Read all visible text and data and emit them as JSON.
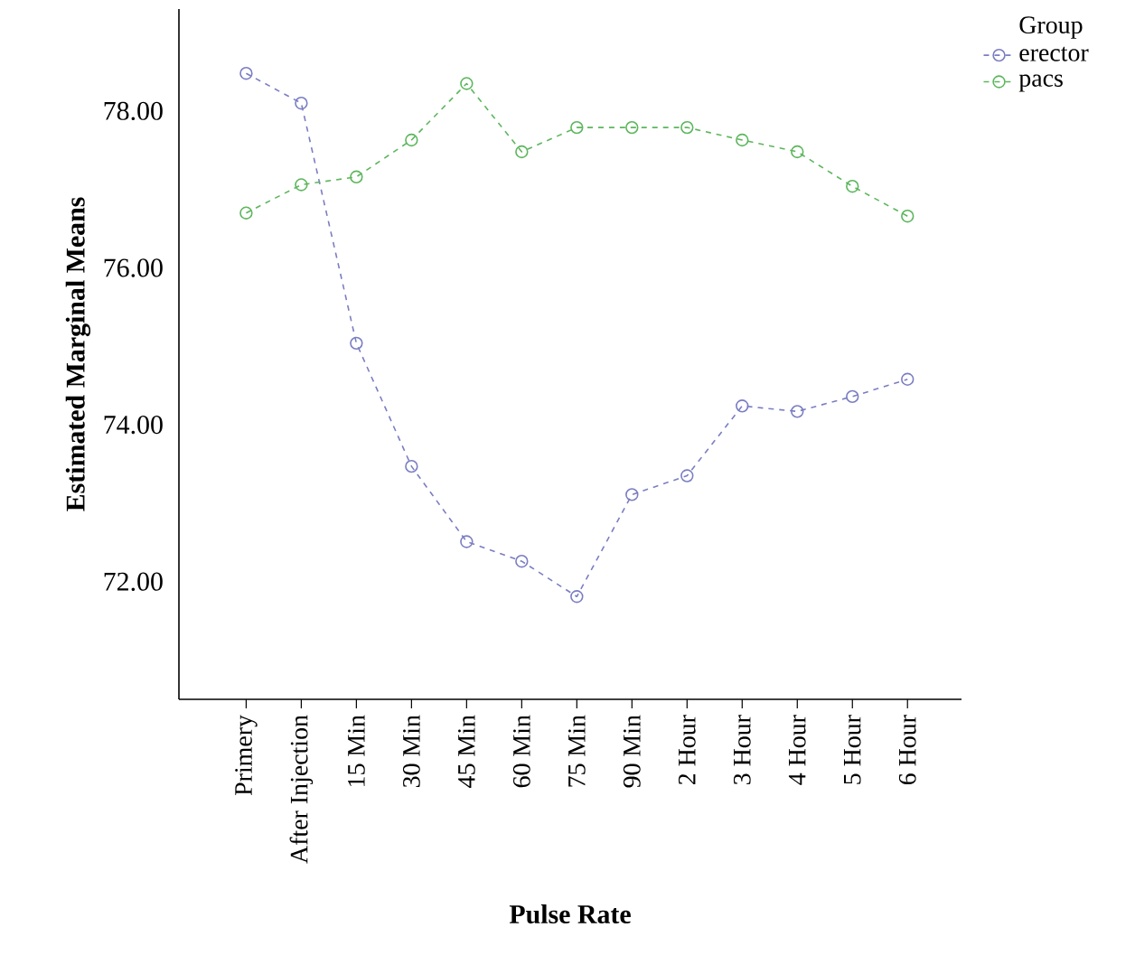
{
  "chart_data": {
    "type": "line",
    "xlabel": "Pulse Rate",
    "ylabel": "Estimated Marginal Means",
    "legend_title": "Group",
    "categories": [
      "Primery",
      "After Injection",
      "15 Min",
      "30 Min",
      "45 Min",
      "60 Min",
      "75 Min",
      "90 Min",
      "2 Hour",
      "3 Hour",
      "4 Hour",
      "5 Hour",
      "6 Hour"
    ],
    "series": [
      {
        "name": "erector",
        "color": "#7a7ec2",
        "values": [
          78.48,
          78.1,
          75.04,
          73.47,
          72.51,
          72.26,
          71.81,
          73.11,
          73.35,
          74.24,
          74.17,
          74.36,
          74.58
        ]
      },
      {
        "name": "pacs",
        "color": "#5cb65c",
        "values": [
          76.7,
          77.06,
          77.16,
          77.63,
          78.35,
          77.48,
          77.79,
          77.79,
          77.79,
          77.63,
          77.48,
          77.04,
          76.66
        ]
      }
    ],
    "ylim": [
      70.5,
      79.3
    ],
    "yticks": [
      {
        "value": 72,
        "label": "72.00"
      },
      {
        "value": 74,
        "label": "74.00"
      },
      {
        "value": 76,
        "label": "76.00"
      },
      {
        "value": 78,
        "label": "78.00"
      }
    ],
    "grid": false,
    "legend": "top right",
    "marker": "circle",
    "line_style": "dashed"
  }
}
